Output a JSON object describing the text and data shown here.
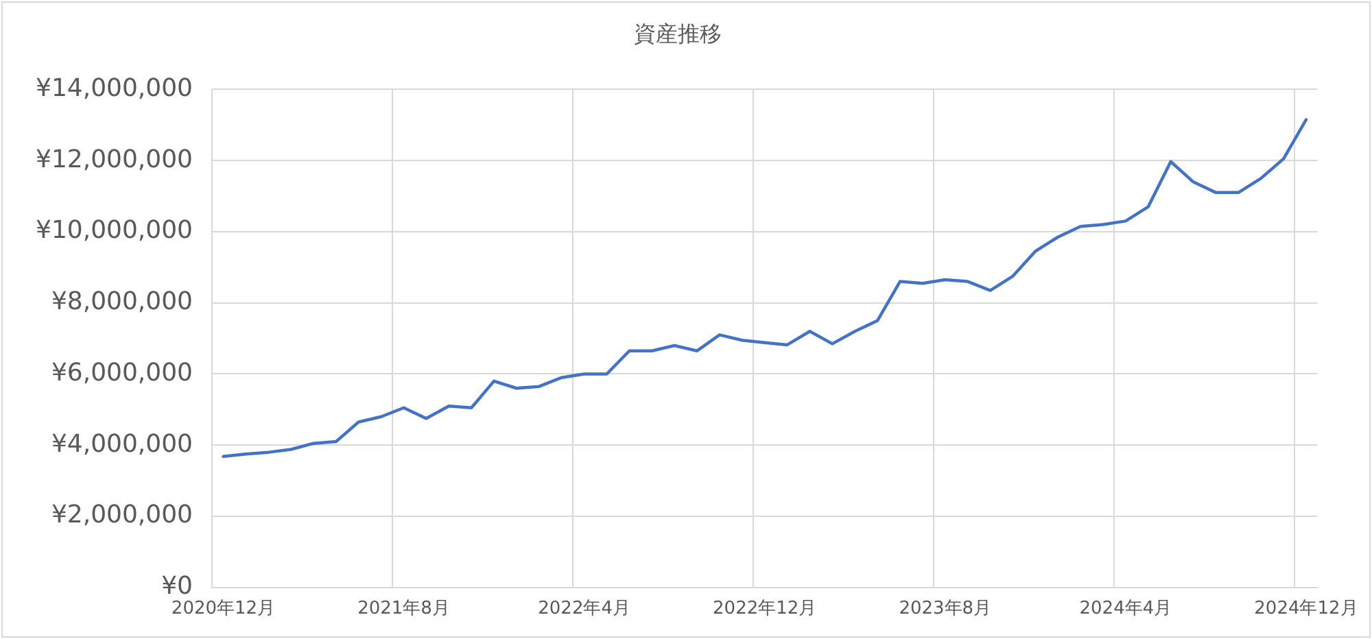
{
  "chart_data": {
    "type": "line",
    "title": "資産推移",
    "categories": [
      "2020年12月",
      null,
      null,
      null,
      null,
      null,
      null,
      null,
      "2021年8月",
      null,
      null,
      null,
      null,
      null,
      null,
      null,
      "2022年4月",
      null,
      null,
      null,
      null,
      null,
      null,
      null,
      "2022年12月",
      null,
      null,
      null,
      null,
      null,
      null,
      null,
      "2023年8月",
      null,
      null,
      null,
      null,
      null,
      null,
      null,
      "2024年4月",
      null,
      null,
      null,
      null,
      null,
      null,
      null,
      "2024年12月"
    ],
    "series": [
      {
        "color": "#4472c4",
        "values": [
          3680000,
          3750000,
          3800000,
          3880000,
          4050000,
          4100000,
          4650000,
          4800000,
          5050000,
          4750000,
          5100000,
          5050000,
          5800000,
          5600000,
          5650000,
          5900000,
          6000000,
          6000000,
          6650000,
          6650000,
          6800000,
          6650000,
          7100000,
          6950000,
          6880000,
          6820000,
          7200000,
          6850000,
          7200000,
          7500000,
          8600000,
          8550000,
          8650000,
          8600000,
          8350000,
          8750000,
          9450000,
          9850000,
          10150000,
          10200000,
          10300000,
          10700000,
          11970000,
          11400000,
          11100000,
          11100000,
          11500000,
          12050000,
          13150000
        ]
      }
    ],
    "ylim": [
      0,
      14000000
    ],
    "yticks": [
      {
        "value": 0,
        "label": "¥0"
      },
      {
        "value": 2000000,
        "label": "¥2,000,000"
      },
      {
        "value": 4000000,
        "label": "¥4,000,000"
      },
      {
        "value": 6000000,
        "label": "¥6,000,000"
      },
      {
        "value": 8000000,
        "label": "¥8,000,000"
      },
      {
        "value": 10000000,
        "label": "¥10,000,000"
      },
      {
        "value": 12000000,
        "label": "¥12,000,000"
      },
      {
        "value": 14000000,
        "label": "¥14,000,000"
      }
    ],
    "grid": true,
    "legend": false,
    "marker": "none",
    "line_style": "solid"
  }
}
